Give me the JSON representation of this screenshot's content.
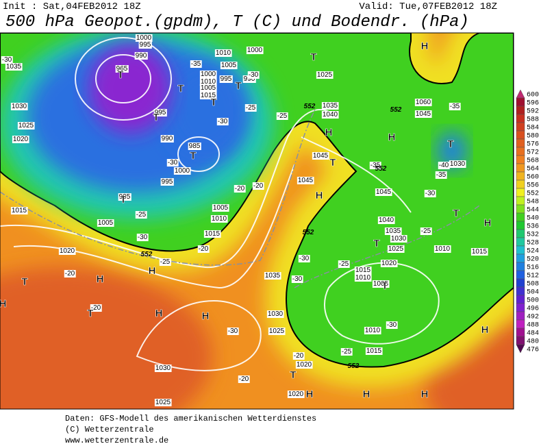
{
  "header": {
    "init": "Init : Sat,04FEB2012 18Z",
    "valid": "Valid: Tue,07FEB2012 18Z",
    "title": "500 hPa Geopot.(gpdm), T (C) und Bodendr. (hPa)"
  },
  "map": {
    "pressure_labels": [
      "1035",
      "1030",
      "1025",
      "1020",
      "1015",
      "1020",
      "1005",
      "1000",
      "995",
      "990",
      "965",
      "995",
      "990",
      "985",
      "1000",
      "995",
      "995",
      "1005",
      "1010",
      "1000",
      "1005",
      "1000",
      "1010",
      "1005",
      "1015",
      "995",
      "990",
      "1025",
      "1035",
      "1040",
      "1045",
      "1045",
      "1045",
      "1040",
      "1035",
      "1030",
      "1025",
      "1020",
      "1015",
      "1010",
      "1005",
      "1010",
      "1015",
      "1030",
      "1025",
      "1020",
      "1020",
      "1030",
      "1025",
      "1060",
      "1045",
      "1030",
      "1010",
      "1015",
      "1005",
      "1010",
      "1015",
      "1035"
    ],
    "temperature_labels": [
      "-30",
      "-35",
      "-30",
      "-25",
      "-25",
      "-30",
      "-30",
      "-20",
      "-20",
      "-25",
      "-30",
      "-20",
      "-25",
      "-20",
      "-20",
      "-30",
      "-20",
      "-20",
      "-35",
      "-40",
      "-35",
      "-30",
      "-25",
      "-30",
      "-30",
      "-25",
      "-30",
      "-25",
      "-35"
    ],
    "height_labels": [
      "552",
      "552",
      "552",
      "552",
      "552",
      "552"
    ],
    "high_markers": [
      "H",
      "H",
      "H",
      "H",
      "H",
      "H",
      "H",
      "H",
      "H",
      "H",
      "H",
      "H",
      "H",
      "H"
    ],
    "low_markers": [
      "T",
      "T",
      "T",
      "T",
      "T",
      "T",
      "T",
      "T",
      "T",
      "T",
      "T",
      "T",
      "T",
      "T",
      "T",
      "T"
    ]
  },
  "legend": {
    "values": [
      600,
      596,
      592,
      588,
      584,
      580,
      576,
      572,
      568,
      564,
      560,
      556,
      552,
      548,
      544,
      540,
      536,
      532,
      528,
      524,
      520,
      516,
      512,
      508,
      504,
      500,
      496,
      492,
      488,
      484,
      480,
      476
    ],
    "colors": [
      "#c02870",
      "#a01030",
      "#b02020",
      "#c83020",
      "#d04020",
      "#d85020",
      "#e06020",
      "#e87020",
      "#f08020",
      "#f09820",
      "#f0b420",
      "#f0d020",
      "#f0f020",
      "#c0f020",
      "#80e020",
      "#40d020",
      "#20c830",
      "#20c870",
      "#20c8a0",
      "#20c0d0",
      "#20a0e0",
      "#2080e0",
      "#2060e0",
      "#2040d0",
      "#4030d0",
      "#6020d0",
      "#8020d0",
      "#a020c0",
      "#c020c0",
      "#a01090",
      "#801070",
      "#500850"
    ]
  },
  "footer": [
    "Daten: GFS-Modell des amerikanischen Wetterdienstes",
    "(C) Wetterzentrale",
    "www.wetterzentrale.de"
  ]
}
